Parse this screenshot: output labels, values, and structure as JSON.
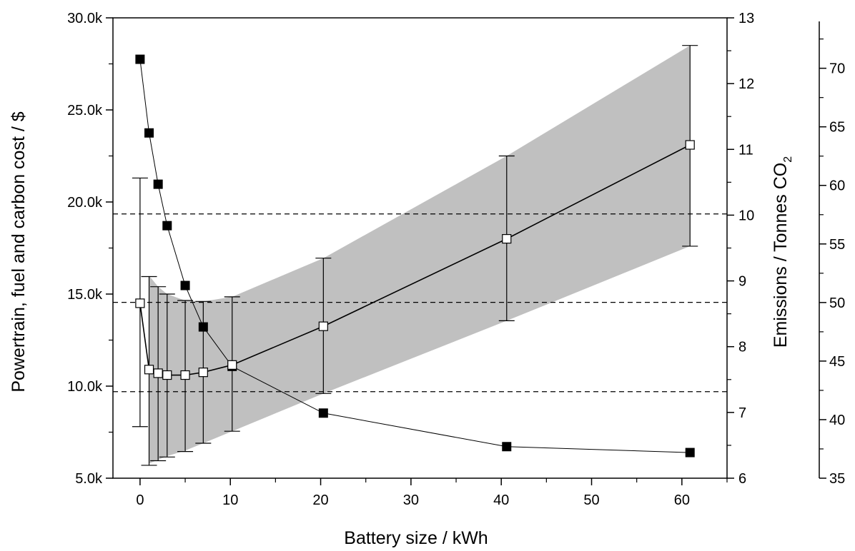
{
  "chart_data": {
    "type": "scatter",
    "xlabel": "Battery size / kWh",
    "ylabel_left": "Powertrain, fuel and carbon cost / $",
    "ylabel_right_main": "Emissions / Tonnes CO",
    "ylabel_right_sub": "2",
    "xlim": [
      -3,
      65
    ],
    "ylim_left": [
      5000,
      30000
    ],
    "ylim_right": [
      6,
      13
    ],
    "ylim_far_right": [
      35,
      74
    ],
    "x_ticks": [
      0,
      10,
      20,
      30,
      40,
      50,
      60
    ],
    "x_tick_labels": [
      "0",
      "10",
      "20",
      "30",
      "40",
      "50",
      "60"
    ],
    "y_left_ticks": [
      5000,
      10000,
      15000,
      20000,
      25000,
      30000
    ],
    "y_left_tick_labels": [
      "5.0k",
      "10.0k",
      "15.0k",
      "20.0k",
      "25.0k",
      "30.0k"
    ],
    "y_right_ticks": [
      6,
      7,
      8,
      9,
      10,
      11,
      12,
      13
    ],
    "y_right_tick_labels": [
      "6",
      "7",
      "8",
      "9",
      "10",
      "11",
      "12",
      "13"
    ],
    "y_far_right_ticks": [
      35,
      40,
      45,
      50,
      55,
      60,
      65,
      70
    ],
    "y_far_right_tick_labels": [
      "35",
      "40",
      "45",
      "50",
      "55",
      "60",
      "65",
      "70"
    ],
    "horizontal_dashed_lines": [
      9700,
      14550,
      19350
    ],
    "series": [
      {
        "marker": "open-square",
        "axis": "left",
        "x": [
          0,
          1,
          2,
          3,
          5,
          7,
          10.2,
          20.3,
          40.6,
          60.9
        ],
        "y": [
          14500,
          10900,
          10700,
          10600,
          10600,
          10750,
          11150,
          13250,
          18000,
          23100
        ],
        "err_low": [
          7800,
          5700,
          5950,
          6150,
          6450,
          6900,
          7550,
          9600,
          13550,
          17600
        ],
        "err_high": [
          21300,
          15950,
          15400,
          15000,
          14650,
          14600,
          14850,
          16950,
          22500,
          28500
        ]
      },
      {
        "marker": "filled-square",
        "axis": "right",
        "x": [
          0,
          1,
          2,
          3,
          5,
          7,
          10.2,
          20.3,
          40.6,
          60.9
        ],
        "y": [
          12.37,
          11.25,
          10.47,
          9.84,
          8.93,
          8.3,
          7.7,
          6.99,
          6.48,
          6.39
        ]
      }
    ],
    "band": {
      "x": [
        1,
        2,
        3,
        5,
        7,
        10.2,
        20.3,
        40.6,
        60.9
      ],
      "low": [
        5800,
        6000,
        6200,
        6500,
        6900,
        7550,
        9600,
        13550,
        17600
      ],
      "high": [
        16000,
        15400,
        15000,
        14650,
        14600,
        14850,
        16950,
        22500,
        28500
      ]
    }
  }
}
